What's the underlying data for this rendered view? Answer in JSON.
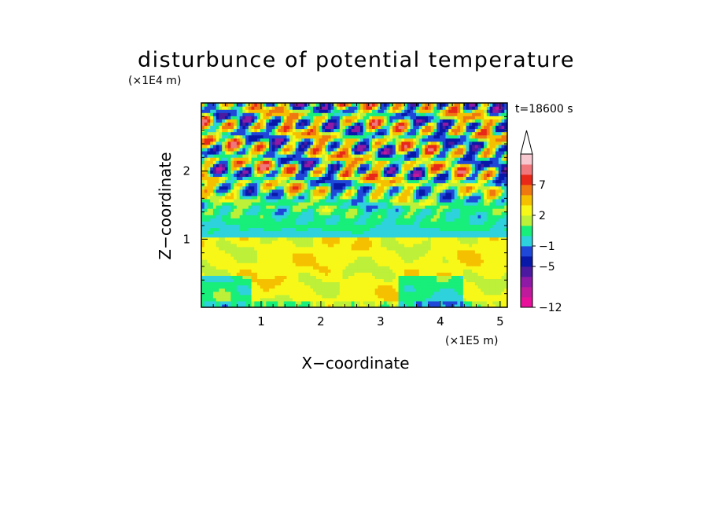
{
  "chart_data": {
    "type": "heatmap",
    "title": "disturbunce of potential temperature",
    "xlabel": "X−coordinate",
    "ylabel": "Z−coordinate",
    "x_unit": "(×1E5 m)",
    "y_unit": "(×1E4 m)",
    "time_label": "t=18600 s",
    "xlim": [
      0,
      5.12
    ],
    "ylim": [
      0,
      3.0
    ],
    "x_ticks": [
      "1",
      "2",
      "3",
      "4",
      "5"
    ],
    "y_ticks": [
      "1",
      "2"
    ],
    "colorbar": {
      "labels": [
        "7",
        "2",
        "−1",
        "−5",
        "−12"
      ],
      "label_values": [
        7,
        2,
        -1,
        -5,
        -12
      ],
      "levels": [
        -12,
        -10,
        -8,
        -6,
        -5,
        -3,
        -1,
        0,
        1,
        2,
        3,
        5,
        7,
        9,
        11
      ],
      "colors": [
        "#e8109a",
        "#c01a9c",
        "#8f1aa6",
        "#4b1aa0",
        "#0818a8",
        "#1f48d8",
        "#2ed2dc",
        "#18ee7a",
        "#bdf038",
        "#f8f818",
        "#f5c000",
        "#f07810",
        "#e82818",
        "#f0787c",
        "#f8c8d0"
      ],
      "extend_max": true
    }
  }
}
